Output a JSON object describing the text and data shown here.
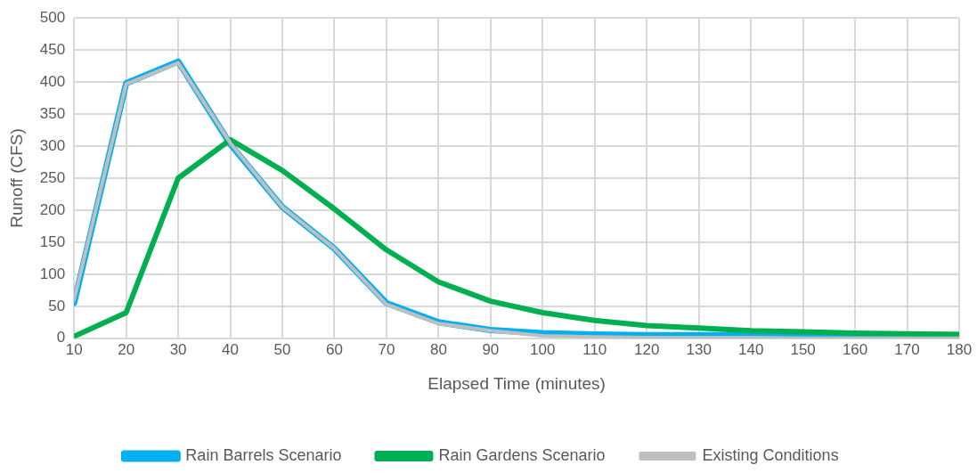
{
  "chart_data": {
    "type": "line",
    "xlabel": "Elapsed Time (minutes)",
    "ylabel": "Runoff (CFS)",
    "x": [
      10,
      20,
      30,
      40,
      50,
      60,
      70,
      80,
      90,
      100,
      110,
      120,
      130,
      140,
      150,
      160,
      170,
      180
    ],
    "series": [
      {
        "name": "Rain Barrels Scenario",
        "color": "#00b0f0",
        "values": [
          55,
          398,
          432,
          303,
          205,
          140,
          55,
          25,
          13,
          8,
          6,
          5,
          5,
          5,
          5,
          5,
          5,
          5
        ]
      },
      {
        "name": "Rain Gardens Scenario",
        "color": "#00b050",
        "values": [
          3,
          40,
          250,
          310,
          262,
          202,
          138,
          88,
          58,
          40,
          28,
          20,
          16,
          12,
          10,
          8,
          7,
          6
        ]
      },
      {
        "name": "Existing Conditions",
        "color": "#bfbfbf",
        "values": [
          60,
          397,
          430,
          305,
          205,
          140,
          53,
          23,
          12,
          4,
          2,
          1,
          1,
          1,
          0,
          0,
          0,
          0
        ]
      }
    ],
    "xlim": [
      10,
      180
    ],
    "xticks": [
      10,
      20,
      30,
      40,
      50,
      60,
      70,
      80,
      90,
      100,
      110,
      120,
      130,
      140,
      150,
      160,
      170,
      180
    ],
    "ylim": [
      0,
      500
    ],
    "yticks": [
      0,
      50,
      100,
      150,
      200,
      250,
      300,
      350,
      400,
      450,
      500
    ],
    "grid": true,
    "legend": "bottom",
    "marker": "none",
    "line_style": "solid"
  }
}
